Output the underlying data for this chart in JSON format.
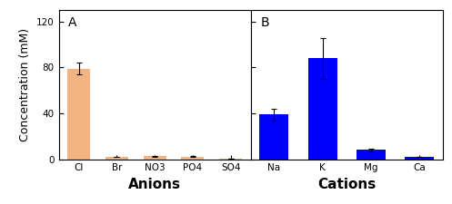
{
  "panel_A": {
    "label": "A",
    "categories": [
      "Cl",
      "Br",
      "NO3",
      "PO4",
      "SO4"
    ],
    "values": [
      79,
      2,
      2.5,
      2,
      0.5
    ],
    "errors": [
      5,
      0.3,
      0.5,
      0.4,
      0.1
    ],
    "bar_color": "#F2B482",
    "xlabel": "Anions",
    "ylabel": "Concentration (mM)",
    "ylim": [
      0,
      130
    ],
    "yticks": [
      0,
      40,
      80,
      120
    ]
  },
  "panel_B": {
    "label": "B",
    "categories": [
      "Na",
      "K",
      "Mg",
      "Ca"
    ],
    "values": [
      39,
      88,
      8,
      2
    ],
    "errors": [
      5,
      18,
      1,
      0.3
    ],
    "bar_color": "#0000FF",
    "xlabel": "Cations",
    "ylim": [
      0,
      130
    ],
    "yticks": [
      0,
      40,
      80,
      120
    ]
  },
  "figure": {
    "bg_color": "#FFFFFF",
    "spine_color": "#000000",
    "tick_color": "#000000",
    "label_fontsize": 9,
    "tick_fontsize": 7.5,
    "annotation_fontsize": 10,
    "xlabel_fontsize": 11
  }
}
